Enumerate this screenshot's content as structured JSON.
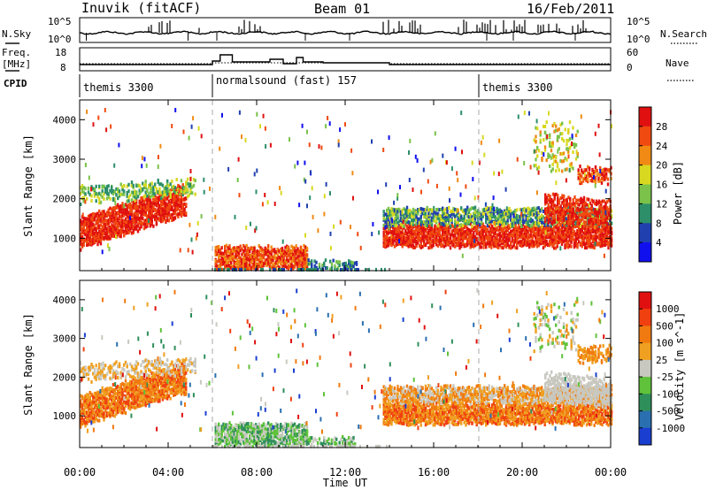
{
  "header": {
    "station": "Inuvik (fitACF)",
    "beam": "Beam 01",
    "date": "16/Feb/2011"
  },
  "panels": {
    "nsky_label": "N.Sky",
    "nsearch_label": "N.Search",
    "nsky_left_ticks": [
      "10^5",
      "10^0"
    ],
    "nsky_right_ticks": [
      "10^5",
      "10^0"
    ],
    "freq_label_1": "Freq.",
    "freq_label_2": "[MHz]",
    "freq_ticks": [
      "18",
      "8"
    ],
    "nave_label": "Nave",
    "nave_ticks": [
      "60",
      "0"
    ],
    "cpid_label": "CPID"
  },
  "chart_data": [
    {
      "type": "heatmap",
      "panel": "power",
      "ylabel": "Slant Range [km]",
      "colorbar_label": "Power [dB]",
      "colorbar_ticks": [
        "28",
        "24",
        "20",
        "16",
        "12",
        "8",
        "4"
      ],
      "colors": [
        "#1010ee",
        "#2040b0",
        "#2c8f6a",
        "#7ac24a",
        "#d8d820",
        "#f08a14",
        "#f04a10",
        "#e01010"
      ],
      "ylim": [
        180,
        4500
      ],
      "yticks": [
        1000,
        2000,
        3000,
        4000
      ]
    },
    {
      "type": "heatmap",
      "panel": "velocity",
      "ylabel": "Slant Range [km]",
      "colorbar_label": "Velocity [m s^-1]",
      "colorbar_ticks": [
        "1000",
        "500",
        "100",
        "25",
        "-25",
        "-100",
        "-500",
        "-1000"
      ],
      "colors": [
        "#1a3fd0",
        "#2a6fb0",
        "#2f8f5a",
        "#5fc23a",
        "#c8c8c0",
        "#f0a020",
        "#f07a10",
        "#f04010",
        "#e01010"
      ],
      "ylim": [
        180,
        4500
      ],
      "yticks": [
        1000,
        2000,
        3000,
        4000
      ]
    }
  ],
  "cpid_segments": [
    {
      "label": "themis 3300"
    },
    {
      "label": "normalsound (fast) 157"
    },
    {
      "label": "themis 3300"
    }
  ],
  "x_axis": {
    "xlabel": "Time UT",
    "ticks": [
      "00:00",
      "04:00",
      "08:00",
      "12:00",
      "16:00",
      "20:00",
      "00:00"
    ]
  }
}
